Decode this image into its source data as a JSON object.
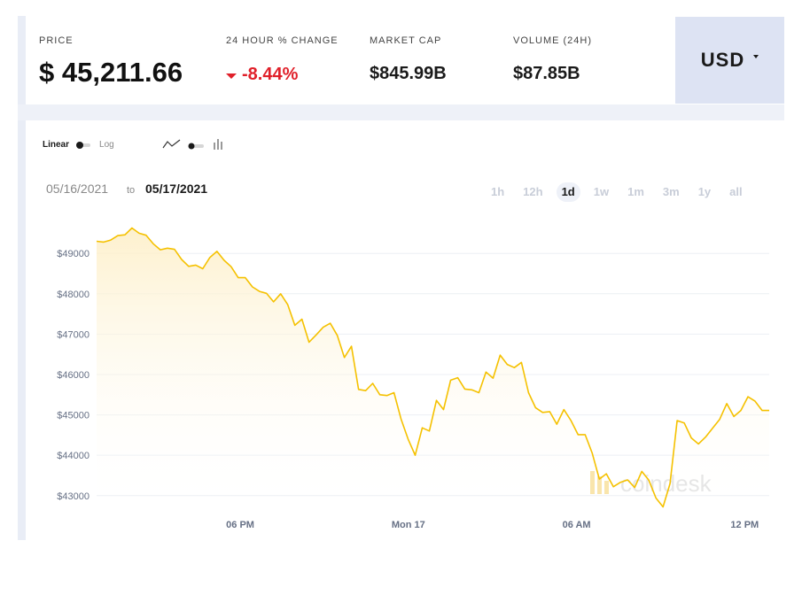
{
  "stats": {
    "price": {
      "label": "PRICE",
      "value": "$ 45,211.66"
    },
    "change": {
      "label": "24 HOUR % CHANGE",
      "value": "-8.44%"
    },
    "market_cap": {
      "label": "MARKET CAP",
      "value": "$845.99B"
    },
    "volume": {
      "label": "VOLUME (24H)",
      "value": "$87.85B"
    }
  },
  "currency": {
    "label": "USD"
  },
  "controls": {
    "scale_linear": "Linear",
    "scale_log": "Log",
    "range_from": "05/16/2021",
    "range_to_word": "to",
    "range_to": "05/17/2021",
    "periods": [
      "1h",
      "12h",
      "1d",
      "1w",
      "1m",
      "3m",
      "1y",
      "all"
    ],
    "active_period": "1d"
  },
  "watermark": "coindesk",
  "colors": {
    "line": "#f5c100",
    "fill_top": "#fdefc8",
    "negative": "#e0202a",
    "currency_bg": "#dde3f3"
  },
  "chart_data": {
    "type": "area",
    "y_scale": "linear",
    "ylim": [
      42600,
      49750
    ],
    "xlim": [
      0,
      96
    ],
    "yticks": [
      {
        "value": 43000,
        "label": "$43000"
      },
      {
        "value": 44000,
        "label": "$44000"
      },
      {
        "value": 45000,
        "label": "$45000"
      },
      {
        "value": 46000,
        "label": "$46000"
      },
      {
        "value": 47000,
        "label": "$47000"
      },
      {
        "value": 48000,
        "label": "$48000"
      },
      {
        "value": 49000,
        "label": "$49000"
      }
    ],
    "xticks": [
      {
        "value": 20.5,
        "label": "06 PM"
      },
      {
        "value": 44.5,
        "label": "Mon 17"
      },
      {
        "value": 68.5,
        "label": "06 AM"
      },
      {
        "value": 92.5,
        "label": "12 PM"
      }
    ],
    "grid": true,
    "series": [
      {
        "values": [
          49300,
          49280,
          49330,
          49440,
          49460,
          49630,
          49500,
          49450,
          49240,
          49090,
          49130,
          49100,
          48850,
          48680,
          48710,
          48620,
          48900,
          49050,
          48830,
          48670,
          48400,
          48400,
          48170,
          48060,
          48010,
          47800,
          48000,
          47730,
          47220,
          47370,
          46800,
          46980,
          47170,
          47270,
          46970,
          46420,
          46700,
          45630,
          45600,
          45780,
          45500,
          45480,
          45550,
          44900,
          44400,
          44000,
          44680,
          44600,
          45360,
          45130,
          45860,
          45920,
          45640,
          45620,
          45550,
          46060,
          45910,
          46480,
          46250,
          46170,
          46300,
          45550,
          45180,
          45060,
          45080,
          44770,
          45130,
          44860,
          44510,
          44510,
          44050,
          43410,
          43540,
          43220,
          43330,
          43390,
          43200,
          43600,
          43380,
          42940,
          42720,
          43300,
          44860,
          44800,
          44430,
          44280,
          44450,
          44670,
          44890,
          45280,
          44960,
          45110,
          45450,
          45340,
          45110,
          45110
        ]
      }
    ]
  }
}
